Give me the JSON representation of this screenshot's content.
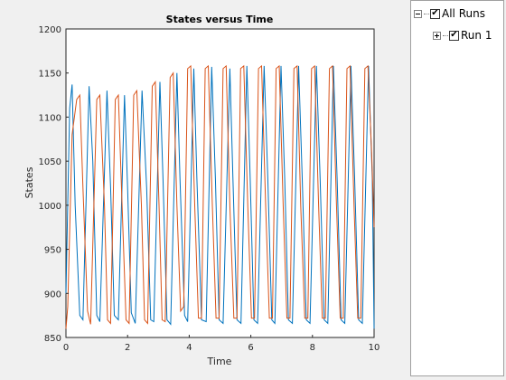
{
  "chart_data": {
    "type": "line",
    "title": "States versus Time",
    "xlabel": "Time",
    "ylabel": "States",
    "xlim": [
      0,
      10
    ],
    "ylim": [
      850,
      1200
    ],
    "xticks": [
      0,
      2,
      4,
      6,
      8,
      10
    ],
    "yticks": [
      850,
      900,
      950,
      1000,
      1050,
      1100,
      1150,
      1200
    ],
    "grid": false,
    "series": [
      {
        "color": "#0072bd",
        "points": [
          [
            0.0,
            900
          ],
          [
            0.12,
            1110
          ],
          [
            0.2,
            1137
          ],
          [
            0.3,
            1000
          ],
          [
            0.45,
            875
          ],
          [
            0.55,
            870
          ],
          [
            0.75,
            1135
          ],
          [
            0.87,
            1050
          ],
          [
            1.0,
            875
          ],
          [
            1.1,
            868
          ],
          [
            1.33,
            1130
          ],
          [
            1.45,
            1020
          ],
          [
            1.57,
            875
          ],
          [
            1.7,
            870
          ],
          [
            1.9,
            1125
          ],
          [
            2.0,
            1020
          ],
          [
            2.12,
            878
          ],
          [
            2.25,
            866
          ],
          [
            2.47,
            1130
          ],
          [
            2.62,
            1020
          ],
          [
            2.75,
            870
          ],
          [
            2.85,
            868
          ],
          [
            3.05,
            1140
          ],
          [
            3.15,
            1030
          ],
          [
            3.28,
            870
          ],
          [
            3.4,
            865
          ],
          [
            3.6,
            1150
          ],
          [
            3.7,
            1030
          ],
          [
            3.85,
            875
          ],
          [
            3.95,
            868
          ],
          [
            4.15,
            1155
          ],
          [
            4.25,
            1030
          ],
          [
            4.4,
            870
          ],
          [
            4.55,
            868
          ],
          [
            4.73,
            1157
          ],
          [
            4.85,
            1030
          ],
          [
            4.97,
            870
          ],
          [
            5.1,
            866
          ],
          [
            5.32,
            1155
          ],
          [
            5.42,
            1030
          ],
          [
            5.55,
            870
          ],
          [
            5.68,
            866
          ],
          [
            5.87,
            1158
          ],
          [
            5.98,
            1030
          ],
          [
            6.1,
            870
          ],
          [
            6.22,
            866
          ],
          [
            6.43,
            1158
          ],
          [
            6.55,
            1030
          ],
          [
            6.68,
            870
          ],
          [
            6.78,
            866
          ],
          [
            6.98,
            1158
          ],
          [
            7.1,
            1030
          ],
          [
            7.22,
            870
          ],
          [
            7.35,
            866
          ],
          [
            7.55,
            1158
          ],
          [
            7.67,
            1030
          ],
          [
            7.8,
            870
          ],
          [
            7.92,
            866
          ],
          [
            8.13,
            1158
          ],
          [
            8.25,
            1030
          ],
          [
            8.38,
            870
          ],
          [
            8.5,
            866
          ],
          [
            8.68,
            1158
          ],
          [
            8.8,
            1030
          ],
          [
            8.93,
            870
          ],
          [
            9.05,
            866
          ],
          [
            9.25,
            1158
          ],
          [
            9.37,
            1030
          ],
          [
            9.5,
            870
          ],
          [
            9.62,
            866
          ],
          [
            9.82,
            1158
          ],
          [
            9.94,
            1030
          ],
          [
            10.0,
            860
          ]
        ]
      },
      {
        "color": "#d95319",
        "points": [
          [
            0.0,
            860
          ],
          [
            0.06,
            885
          ],
          [
            0.2,
            1080
          ],
          [
            0.35,
            1120
          ],
          [
            0.45,
            1125
          ],
          [
            0.55,
            1020
          ],
          [
            0.7,
            880
          ],
          [
            0.8,
            865
          ],
          [
            1.0,
            1120
          ],
          [
            1.1,
            1125
          ],
          [
            1.25,
            1000
          ],
          [
            1.35,
            870
          ],
          [
            1.45,
            866
          ],
          [
            1.6,
            1120
          ],
          [
            1.7,
            1125
          ],
          [
            1.82,
            1000
          ],
          [
            1.95,
            870
          ],
          [
            2.05,
            866
          ],
          [
            2.2,
            1125
          ],
          [
            2.3,
            1130
          ],
          [
            2.45,
            1000
          ],
          [
            2.55,
            870
          ],
          [
            2.65,
            866
          ],
          [
            2.8,
            1135
          ],
          [
            2.9,
            1140
          ],
          [
            3.02,
            1000
          ],
          [
            3.12,
            870
          ],
          [
            3.22,
            868
          ],
          [
            3.38,
            1145
          ],
          [
            3.48,
            1150
          ],
          [
            3.6,
            1000
          ],
          [
            3.72,
            880
          ],
          [
            3.82,
            885
          ],
          [
            3.95,
            1155
          ],
          [
            4.05,
            1158
          ],
          [
            4.18,
            1000
          ],
          [
            4.3,
            872
          ],
          [
            4.4,
            872
          ],
          [
            4.52,
            1155
          ],
          [
            4.62,
            1158
          ],
          [
            4.75,
            1000
          ],
          [
            4.87,
            872
          ],
          [
            4.97,
            872
          ],
          [
            5.1,
            1155
          ],
          [
            5.2,
            1158
          ],
          [
            5.32,
            1000
          ],
          [
            5.45,
            872
          ],
          [
            5.55,
            872
          ],
          [
            5.67,
            1155
          ],
          [
            5.77,
            1158
          ],
          [
            5.9,
            1000
          ],
          [
            6.02,
            872
          ],
          [
            6.12,
            872
          ],
          [
            6.25,
            1155
          ],
          [
            6.35,
            1158
          ],
          [
            6.48,
            1000
          ],
          [
            6.6,
            872
          ],
          [
            6.7,
            872
          ],
          [
            6.82,
            1155
          ],
          [
            6.92,
            1158
          ],
          [
            7.05,
            1000
          ],
          [
            7.17,
            872
          ],
          [
            7.27,
            872
          ],
          [
            7.4,
            1155
          ],
          [
            7.5,
            1158
          ],
          [
            7.62,
            1000
          ],
          [
            7.75,
            872
          ],
          [
            7.85,
            872
          ],
          [
            7.97,
            1155
          ],
          [
            8.07,
            1158
          ],
          [
            8.2,
            1000
          ],
          [
            8.32,
            872
          ],
          [
            8.42,
            872
          ],
          [
            8.55,
            1155
          ],
          [
            8.65,
            1158
          ],
          [
            8.78,
            1000
          ],
          [
            8.9,
            872
          ],
          [
            9.0,
            872
          ],
          [
            9.12,
            1155
          ],
          [
            9.22,
            1158
          ],
          [
            9.35,
            1000
          ],
          [
            9.47,
            872
          ],
          [
            9.57,
            872
          ],
          [
            9.7,
            1155
          ],
          [
            9.8,
            1158
          ],
          [
            9.92,
            1060
          ],
          [
            10.0,
            975
          ]
        ]
      }
    ]
  },
  "tree": {
    "root_label": "All Runs",
    "child_label": "Run 1",
    "check_glyph": "✔"
  }
}
